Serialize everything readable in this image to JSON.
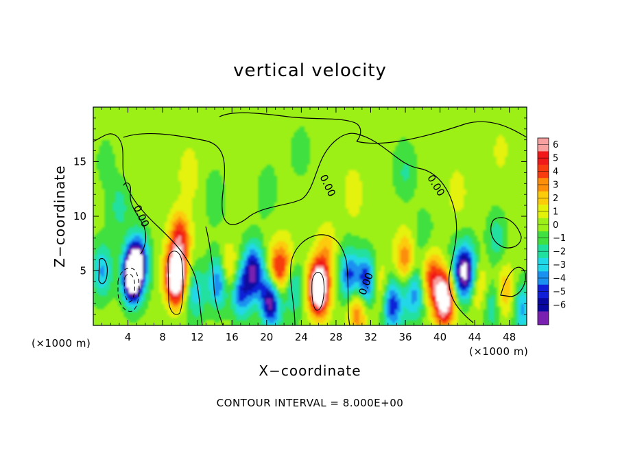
{
  "chart_data": {
    "type": "heatmap",
    "title": "vertical velocity",
    "xlabel": "X−coordinate",
    "ylabel": "Z−coordinate",
    "x_unit": "(×1000 m)",
    "y_unit": "(×1000 m)",
    "footer": "CONTOUR INTERVAL = 8.000E+00",
    "xlim": [
      0,
      50
    ],
    "ylim": [
      0,
      20
    ],
    "x_ticks": [
      4,
      8,
      12,
      16,
      20,
      24,
      28,
      32,
      36,
      40,
      44,
      48
    ],
    "y_ticks": [
      5,
      10,
      15
    ],
    "colorbar": {
      "levels": [
        "6",
        "5",
        "4",
        "3",
        "2",
        "1",
        "0",
        "−1",
        "−2",
        "−3",
        "−4",
        "−5",
        "−6"
      ],
      "range": [
        -6,
        6
      ],
      "colors": [
        "#f6a0a0",
        "#f01818",
        "#f83c10",
        "#fc8e0a",
        "#fccb0a",
        "#e4f20a",
        "#9cf018",
        "#40e040",
        "#20e0a0",
        "#20d8e8",
        "#1a90f0",
        "#1020d8",
        "#0808a0",
        "#7a20b0"
      ]
    },
    "contour_labels": [
      "0.00",
      "0.00",
      "0.00",
      "0.00"
    ],
    "cells": [
      {
        "x": 4.5,
        "z": 4.5,
        "w": -8.5
      },
      {
        "x": 5.2,
        "z": 6.0,
        "w": -5.0
      },
      {
        "x": 9.5,
        "z": 4.5,
        "w": 9.0
      },
      {
        "x": 10.0,
        "z": 8.0,
        "w": 4.0
      },
      {
        "x": 11.8,
        "z": 3.0,
        "w": -2.5
      },
      {
        "x": 14.5,
        "z": 4.0,
        "w": -4.5
      },
      {
        "x": 15.5,
        "z": 5.0,
        "w": 3.0
      },
      {
        "x": 17.0,
        "z": 3.0,
        "w": -4.0
      },
      {
        "x": 18.5,
        "z": 5.0,
        "w": -5.5
      },
      {
        "x": 20.5,
        "z": 2.5,
        "w": -7.0
      },
      {
        "x": 21.0,
        "z": 4.5,
        "w": 4.0
      },
      {
        "x": 22.0,
        "z": 5.5,
        "w": 2.5
      },
      {
        "x": 23.0,
        "z": 3.5,
        "w": -2.5
      },
      {
        "x": 26.0,
        "z": 3.5,
        "w": 9.0
      },
      {
        "x": 27.0,
        "z": 7.0,
        "w": 2.0
      },
      {
        "x": 29.5,
        "z": 4.5,
        "w": -4.0
      },
      {
        "x": 31.5,
        "z": 4.0,
        "w": -5.0
      },
      {
        "x": 30.5,
        "z": 1.5,
        "w": 3.5
      },
      {
        "x": 33.0,
        "z": 3.5,
        "w": 2.0
      },
      {
        "x": 34.5,
        "z": 2.0,
        "w": -4.5
      },
      {
        "x": 36.0,
        "z": 6.0,
        "w": 3.0
      },
      {
        "x": 37.0,
        "z": 3.0,
        "w": -3.5
      },
      {
        "x": 39.0,
        "z": 4.5,
        "w": 3.5
      },
      {
        "x": 40.5,
        "z": 2.5,
        "w": 7.5
      },
      {
        "x": 42.0,
        "z": 4.5,
        "w": -2.0
      },
      {
        "x": 43.0,
        "z": 5.0,
        "w": -6.0
      },
      {
        "x": 44.5,
        "z": 3.5,
        "w": 2.0
      },
      {
        "x": 46.0,
        "z": 2.0,
        "w": -2.0
      },
      {
        "x": 47.5,
        "z": 3.0,
        "w": 2.5
      },
      {
        "x": 49.5,
        "z": 1.5,
        "w": -3.0
      },
      {
        "x": 3.0,
        "z": 11.0,
        "w": -1.5
      },
      {
        "x": 11.0,
        "z": 14.0,
        "w": 1.5
      },
      {
        "x": 14.0,
        "z": 12.0,
        "w": -1.0
      },
      {
        "x": 20.0,
        "z": 12.0,
        "w": -0.8
      },
      {
        "x": 24.0,
        "z": 16.0,
        "w": -0.6
      },
      {
        "x": 30.0,
        "z": 12.0,
        "w": 1.2
      },
      {
        "x": 36.0,
        "z": 14.0,
        "w": -1.2
      },
      {
        "x": 42.0,
        "z": 12.0,
        "w": 1.0
      },
      {
        "x": 46.5,
        "z": 8.0,
        "w": -1.8
      },
      {
        "x": 47.0,
        "z": 16.0,
        "w": 1.0
      },
      {
        "x": 8.0,
        "z": 18.5,
        "w": 0.6
      },
      {
        "x": 38.0,
        "z": 8.0,
        "w": -1.0
      },
      {
        "x": 1.0,
        "z": 5.0,
        "w": -3.0
      },
      {
        "x": 1.5,
        "z": 15.0,
        "w": -0.8
      }
    ]
  }
}
